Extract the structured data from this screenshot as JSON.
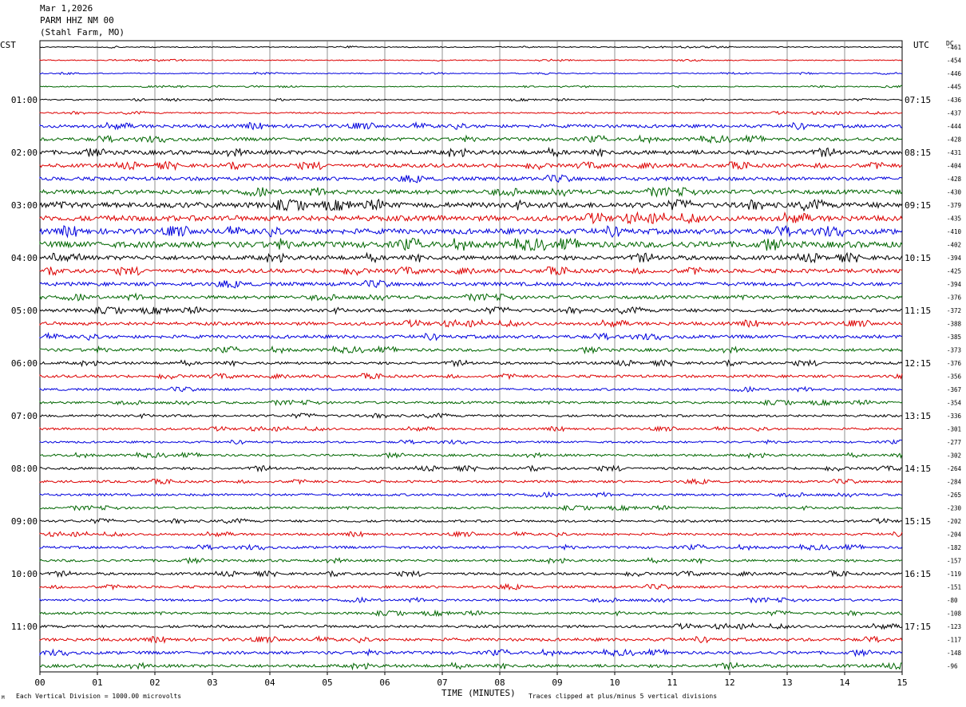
{
  "header": {
    "date": "Mar 1,2026",
    "station": "PARM HHZ NM 00",
    "location": "(Stahl Farm, MO)"
  },
  "left_tz": "CST",
  "right_tz": "UTC",
  "dc_label": "DC",
  "footer": {
    "division_note": "Each Vertical Division = 1000.00 microvolts",
    "clip_note": "Traces clipped at plus/minus 5 vertical divisions",
    "corner_mark": "M"
  },
  "chart_data": {
    "type": "line",
    "title": "",
    "xlabel": "TIME (MINUTES)",
    "ylabel": "",
    "xlim": [
      0,
      15
    ],
    "x_ticks": [
      "00",
      "01",
      "02",
      "03",
      "04",
      "05",
      "06",
      "07",
      "08",
      "09",
      "10",
      "11",
      "12",
      "13",
      "14",
      "15"
    ],
    "left_hour_labels": [
      "01:00",
      "02:00",
      "03:00",
      "04:00",
      "05:00",
      "06:00",
      "07:00",
      "08:00",
      "09:00",
      "10:00",
      "11:00"
    ],
    "right_hour_labels": [
      "07:15",
      "08:15",
      "09:15",
      "10:15",
      "11:15",
      "12:15",
      "13:15",
      "14:15",
      "15:15",
      "16:15",
      "17:15"
    ],
    "trace_colors": [
      "#000000",
      "#dd0000",
      "#0000dd",
      "#006600"
    ],
    "dc_offsets": [
      "-461",
      "-454",
      "-446",
      "-445",
      "-436",
      "-437",
      "-444",
      "-428",
      "-431",
      "-404",
      "-428",
      "-430",
      "-379",
      "-435",
      "-410",
      "-402",
      "-394",
      "-425",
      "-394",
      "-376",
      "-372",
      "-388",
      "-385",
      "-373",
      "-376",
      "-356",
      "-367",
      "-354",
      "-336",
      "-301",
      "-277",
      "-302",
      "-264",
      "-284",
      "-265",
      "-230",
      "-202",
      "-204",
      "-182",
      "-157",
      "-119",
      "-151",
      "-80",
      "-108",
      "-123",
      "-117",
      "-148",
      "-96"
    ],
    "trace_amplitude_px": [
      0.6,
      0.6,
      0.6,
      0.6,
      0.7,
      0.9,
      2.0,
      2.0,
      2.5,
      2.2,
      2.2,
      2.6,
      3.2,
      3.2,
      3.2,
      3.6,
      2.6,
      2.4,
      2.2,
      2.0,
      2.0,
      2.0,
      2.0,
      1.8,
      1.6,
      1.6,
      1.4,
      1.4,
      1.4,
      1.3,
      1.2,
      1.4,
      1.5,
      1.4,
      1.4,
      1.3,
      1.4,
      1.4,
      1.5,
      1.5,
      1.5,
      1.5,
      1.4,
      1.4,
      1.6,
      1.8,
      1.8,
      1.8
    ],
    "grid": true
  }
}
